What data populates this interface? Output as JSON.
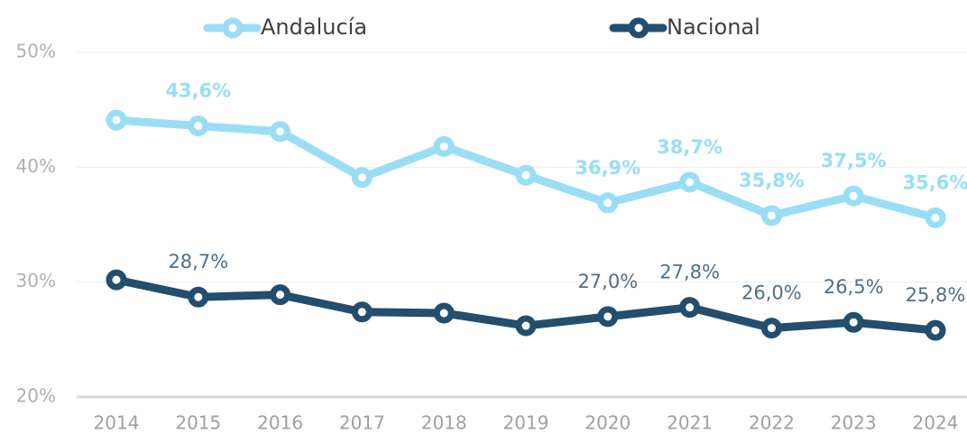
{
  "chart_data": {
    "type": "line",
    "categories": [
      "2014",
      "2015",
      "2016",
      "2017",
      "2018",
      "2019",
      "2020",
      "2021",
      "2022",
      "2023",
      "2024"
    ],
    "series": [
      {
        "name": "Andalucía",
        "color": "#99def5",
        "values": [
          44.1,
          43.6,
          43.1,
          39.1,
          41.8,
          39.3,
          36.9,
          38.7,
          35.8,
          37.5,
          35.6
        ],
        "value_labels": [
          null,
          "43,6%",
          null,
          null,
          null,
          null,
          "36,9%",
          "38,7%",
          "35,8%",
          "37,5%",
          "35,6%"
        ]
      },
      {
        "name": "Nacional",
        "color": "#234e6e",
        "values": [
          30.2,
          28.7,
          28.9,
          27.4,
          27.3,
          26.2,
          27.0,
          27.8,
          26.0,
          26.5,
          25.8
        ],
        "value_labels": [
          null,
          "28,7%",
          null,
          null,
          null,
          null,
          "27,0%",
          "27,8%",
          "26,0%",
          "26,5%",
          "25,8%"
        ]
      }
    ],
    "ylim": [
      20,
      50
    ],
    "yticks": [
      {
        "value": 20,
        "label": "20%"
      },
      {
        "value": 30,
        "label": "30%"
      },
      {
        "value": 40,
        "label": "40%"
      },
      {
        "value": 50,
        "label": "50%"
      }
    ],
    "grid": true,
    "legend": "top"
  }
}
